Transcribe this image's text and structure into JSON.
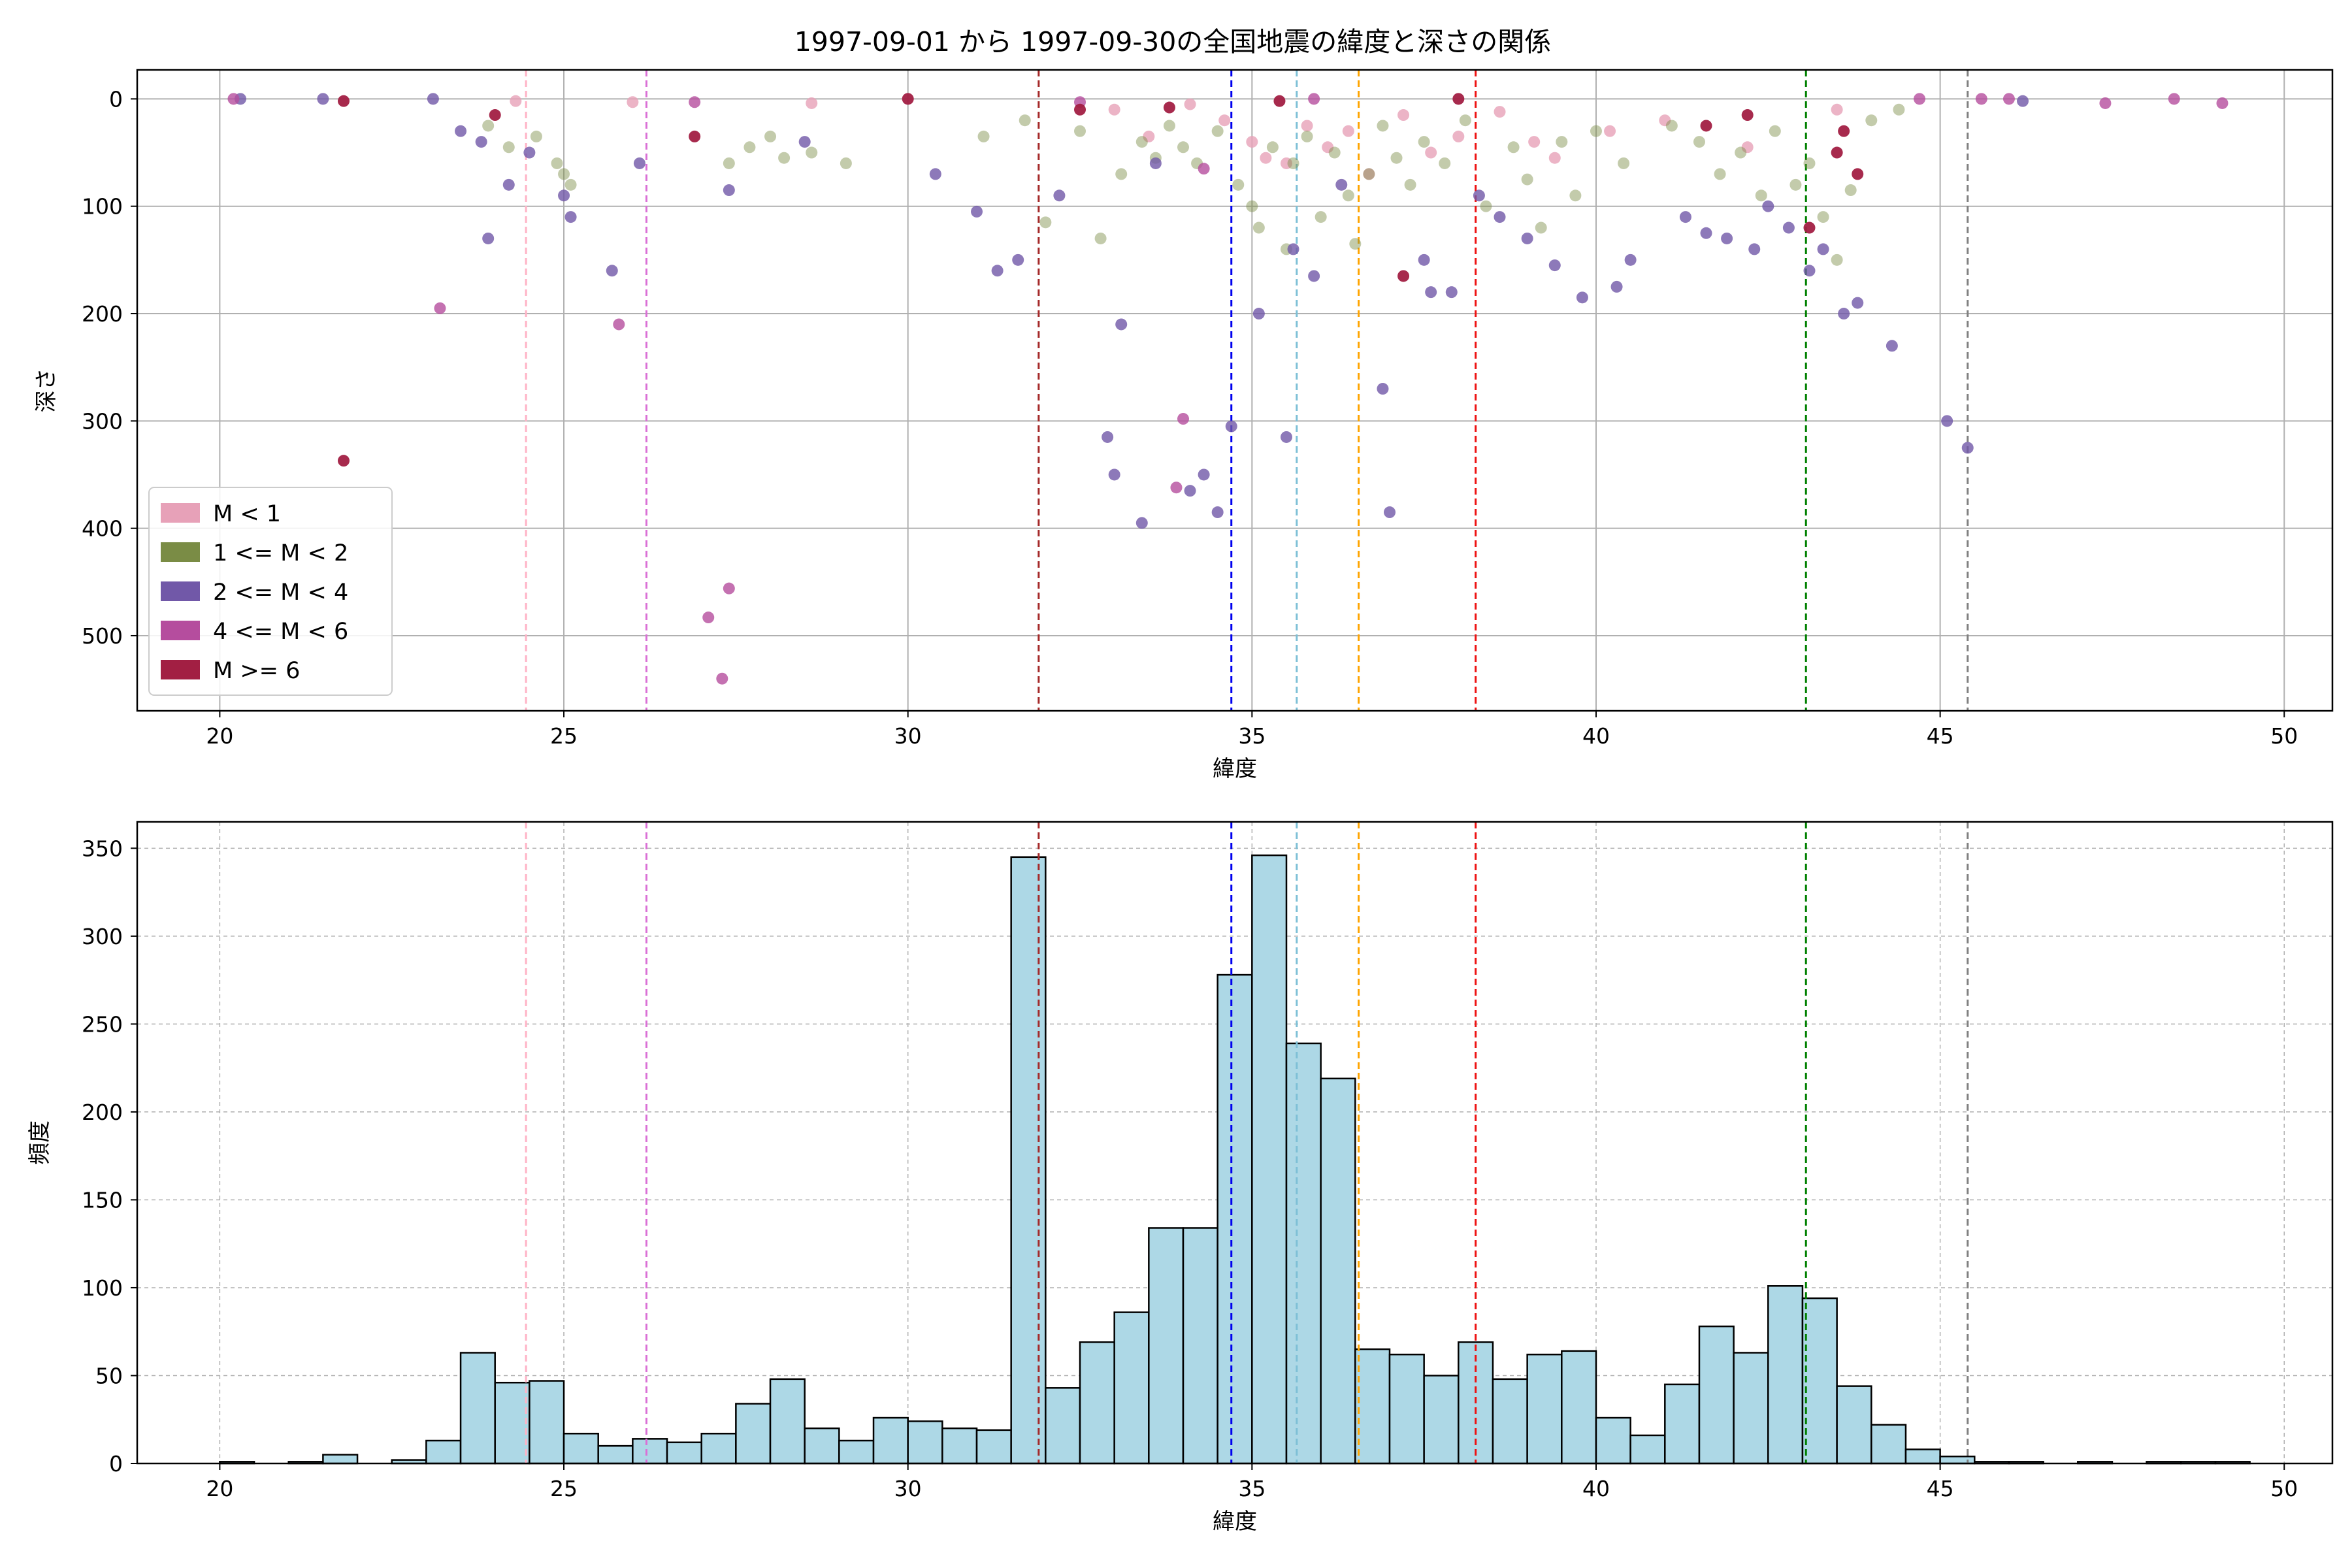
{
  "chart_data": [
    {
      "type": "scatter",
      "title": "1997-09-01 から 1997-09-30の全国地震の緯度と深さの関係",
      "xlabel": "緯度",
      "ylabel": "深さ",
      "xlim": [
        18.8,
        50.7
      ],
      "ylim": [
        570,
        -27
      ],
      "y_inverted": true,
      "xticks": [
        20,
        25,
        30,
        35,
        40,
        45,
        50
      ],
      "yticks": [
        0,
        100,
        200,
        300,
        400,
        500
      ],
      "grid": true,
      "legend_position": "lower-left",
      "legend": [
        {
          "label": "M < 1",
          "color": "#e7a1b8"
        },
        {
          "label": "1 <= M < 2",
          "color": "#7a8c45"
        },
        {
          "label": "2 <= M < 4",
          "color": "#7158a8"
        },
        {
          "label": "4 <= M < 6",
          "color": "#b54d9e"
        },
        {
          "label": "M >= 6",
          "color": "#a21f43"
        }
      ],
      "reference_lines": [
        {
          "x": 24.45,
          "color": "#ffb3c6"
        },
        {
          "x": 26.2,
          "color": "#da70d6"
        },
        {
          "x": 31.9,
          "color": "#a52a2a"
        },
        {
          "x": 34.7,
          "color": "#0000ee"
        },
        {
          "x": 35.65,
          "color": "#7ec0d6"
        },
        {
          "x": 36.55,
          "color": "#ffa500"
        },
        {
          "x": 38.25,
          "color": "#ee1111"
        },
        {
          "x": 43.05,
          "color": "#008000"
        },
        {
          "x": 45.4,
          "color": "#808080"
        }
      ],
      "series": [
        {
          "name": "M < 1",
          "color": "#e7a1b8",
          "points": [
            [
              24.3,
              2
            ],
            [
              26.0,
              3
            ],
            [
              28.6,
              4
            ],
            [
              33.0,
              10
            ],
            [
              33.5,
              35
            ],
            [
              34.1,
              5
            ],
            [
              34.6,
              20
            ],
            [
              35.0,
              40
            ],
            [
              35.2,
              55
            ],
            [
              35.5,
              60
            ],
            [
              35.8,
              25
            ],
            [
              36.1,
              45
            ],
            [
              36.4,
              30
            ],
            [
              36.7,
              70
            ],
            [
              37.2,
              15
            ],
            [
              37.6,
              50
            ],
            [
              38.0,
              35
            ],
            [
              38.6,
              12
            ],
            [
              39.1,
              40
            ],
            [
              39.4,
              55
            ],
            [
              40.2,
              30
            ],
            [
              41.0,
              20
            ],
            [
              42.2,
              45
            ],
            [
              43.5,
              10
            ]
          ]
        },
        {
          "name": "1 <= M < 2",
          "color": "#7a8c45",
          "points": [
            [
              23.9,
              25
            ],
            [
              24.2,
              45
            ],
            [
              24.6,
              35
            ],
            [
              24.9,
              60
            ],
            [
              25.0,
              70
            ],
            [
              25.1,
              80
            ],
            [
              27.4,
              60
            ],
            [
              27.7,
              45
            ],
            [
              28.0,
              35
            ],
            [
              28.2,
              55
            ],
            [
              28.6,
              50
            ],
            [
              29.1,
              60
            ],
            [
              31.1,
              35
            ],
            [
              31.7,
              20
            ],
            [
              32.0,
              115
            ],
            [
              32.5,
              30
            ],
            [
              32.8,
              130
            ],
            [
              33.1,
              70
            ],
            [
              33.4,
              40
            ],
            [
              33.6,
              55
            ],
            [
              33.8,
              25
            ],
            [
              34.0,
              45
            ],
            [
              34.2,
              60
            ],
            [
              34.5,
              30
            ],
            [
              34.8,
              80
            ],
            [
              35.0,
              100
            ],
            [
              35.1,
              120
            ],
            [
              35.3,
              45
            ],
            [
              35.5,
              140
            ],
            [
              35.6,
              60
            ],
            [
              35.8,
              35
            ],
            [
              36.0,
              110
            ],
            [
              36.2,
              50
            ],
            [
              36.4,
              90
            ],
            [
              36.5,
              135
            ],
            [
              36.7,
              70
            ],
            [
              36.9,
              25
            ],
            [
              37.1,
              55
            ],
            [
              37.3,
              80
            ],
            [
              37.5,
              40
            ],
            [
              37.8,
              60
            ],
            [
              38.1,
              20
            ],
            [
              38.4,
              100
            ],
            [
              38.8,
              45
            ],
            [
              39.0,
              75
            ],
            [
              39.2,
              120
            ],
            [
              39.5,
              40
            ],
            [
              39.7,
              90
            ],
            [
              40.0,
              30
            ],
            [
              40.4,
              60
            ],
            [
              41.1,
              25
            ],
            [
              41.5,
              40
            ],
            [
              41.8,
              70
            ],
            [
              42.1,
              50
            ],
            [
              42.4,
              90
            ],
            [
              42.6,
              30
            ],
            [
              42.9,
              80
            ],
            [
              43.1,
              60
            ],
            [
              43.3,
              110
            ],
            [
              43.5,
              150
            ],
            [
              43.7,
              85
            ],
            [
              44.0,
              20
            ],
            [
              44.4,
              10
            ]
          ]
        },
        {
          "name": "2 <= M < 4",
          "color": "#7158a8",
          "points": [
            [
              20.3,
              0
            ],
            [
              21.5,
              0
            ],
            [
              23.1,
              0
            ],
            [
              23.5,
              30
            ],
            [
              23.8,
              40
            ],
            [
              23.9,
              130
            ],
            [
              24.2,
              80
            ],
            [
              24.5,
              50
            ],
            [
              25.0,
              90
            ],
            [
              25.1,
              110
            ],
            [
              25.7,
              160
            ],
            [
              26.1,
              60
            ],
            [
              27.4,
              85
            ],
            [
              28.5,
              40
            ],
            [
              30.4,
              70
            ],
            [
              31.0,
              105
            ],
            [
              31.3,
              160
            ],
            [
              31.6,
              150
            ],
            [
              32.2,
              90
            ],
            [
              32.9,
              315
            ],
            [
              33.0,
              350
            ],
            [
              33.1,
              210
            ],
            [
              33.4,
              395
            ],
            [
              33.6,
              60
            ],
            [
              34.1,
              365
            ],
            [
              34.3,
              350
            ],
            [
              34.5,
              385
            ],
            [
              34.7,
              305
            ],
            [
              35.1,
              200
            ],
            [
              35.5,
              315
            ],
            [
              35.6,
              140
            ],
            [
              35.9,
              165
            ],
            [
              36.3,
              80
            ],
            [
              36.9,
              270
            ],
            [
              37.0,
              385
            ],
            [
              37.5,
              150
            ],
            [
              37.6,
              180
            ],
            [
              37.9,
              180
            ],
            [
              38.3,
              90
            ],
            [
              38.6,
              110
            ],
            [
              39.0,
              130
            ],
            [
              39.4,
              155
            ],
            [
              39.8,
              185
            ],
            [
              40.3,
              175
            ],
            [
              40.5,
              150
            ],
            [
              41.3,
              110
            ],
            [
              41.6,
              125
            ],
            [
              41.9,
              130
            ],
            [
              42.3,
              140
            ],
            [
              42.5,
              100
            ],
            [
              42.8,
              120
            ],
            [
              43.1,
              160
            ],
            [
              43.3,
              140
            ],
            [
              43.6,
              200
            ],
            [
              43.8,
              190
            ],
            [
              44.3,
              230
            ],
            [
              45.1,
              300
            ],
            [
              45.4,
              325
            ],
            [
              46.2,
              2
            ]
          ]
        },
        {
          "name": "4 <= M < 6",
          "color": "#b54d9e",
          "points": [
            [
              20.2,
              0
            ],
            [
              23.2,
              195
            ],
            [
              25.8,
              210
            ],
            [
              26.9,
              3
            ],
            [
              27.1,
              483
            ],
            [
              27.4,
              456
            ],
            [
              27.3,
              540
            ],
            [
              32.5,
              3
            ],
            [
              33.9,
              362
            ],
            [
              34.0,
              298
            ],
            [
              34.3,
              65
            ],
            [
              35.9,
              0
            ],
            [
              44.7,
              0
            ],
            [
              45.6,
              0
            ],
            [
              46.0,
              0
            ],
            [
              47.4,
              4
            ],
            [
              48.4,
              0
            ],
            [
              49.1,
              4
            ]
          ]
        },
        {
          "name": "M >= 6",
          "color": "#a21f43",
          "points": [
            [
              21.8,
              337
            ],
            [
              21.8,
              2
            ],
            [
              24.0,
              15
            ],
            [
              26.9,
              35
            ],
            [
              30.0,
              0
            ],
            [
              32.5,
              10
            ],
            [
              33.8,
              8
            ],
            [
              35.4,
              2
            ],
            [
              37.2,
              165
            ],
            [
              38.0,
              0
            ],
            [
              41.6,
              25
            ],
            [
              42.2,
              15
            ],
            [
              43.1,
              120
            ],
            [
              43.5,
              50
            ],
            [
              43.6,
              30
            ],
            [
              43.8,
              70
            ]
          ]
        }
      ]
    },
    {
      "type": "bar",
      "chart_kind": "histogram",
      "xlabel": "緯度",
      "ylabel": "頻度",
      "xlim": [
        18.8,
        50.7
      ],
      "ylim": [
        0,
        365
      ],
      "xticks": [
        20,
        25,
        30,
        35,
        40,
        45,
        50
      ],
      "yticks": [
        0,
        50,
        100,
        150,
        200,
        250,
        300,
        350
      ],
      "grid": true,
      "bar_color": "#add8e6",
      "bin_edges": [
        20,
        20.5,
        21,
        21.5,
        22,
        22.5,
        23,
        23.5,
        24,
        24.5,
        25,
        25.5,
        26,
        26.5,
        27,
        27.5,
        28,
        28.5,
        29,
        29.5,
        30,
        30.5,
        31,
        31.5,
        32,
        32.5,
        33,
        33.5,
        34,
        34.5,
        35,
        35.5,
        36,
        36.5,
        37,
        37.5,
        38,
        38.5,
        39,
        39.5,
        40,
        40.5,
        41,
        41.5,
        42,
        42.5,
        43,
        43.5,
        44,
        44.5,
        45,
        45.5,
        46,
        46.5,
        47,
        47.5,
        48,
        48.5,
        49,
        49.5
      ],
      "values": [
        1,
        0,
        1,
        5,
        0,
        2,
        13,
        63,
        46,
        47,
        17,
        10,
        14,
        12,
        17,
        34,
        48,
        20,
        13,
        26,
        24,
        20,
        19,
        345,
        43,
        69,
        86,
        134,
        134,
        278,
        346,
        239,
        219,
        65,
        62,
        50,
        69,
        48,
        62,
        64,
        26,
        16,
        45,
        78,
        63,
        101,
        94,
        44,
        22,
        8,
        4,
        1,
        1,
        0,
        1,
        0,
        1,
        1,
        1
      ],
      "reference_lines": [
        {
          "x": 24.45,
          "color": "#ffb3c6"
        },
        {
          "x": 26.2,
          "color": "#da70d6"
        },
        {
          "x": 31.9,
          "color": "#a52a2a"
        },
        {
          "x": 34.7,
          "color": "#0000ee"
        },
        {
          "x": 35.65,
          "color": "#7ec0d6"
        },
        {
          "x": 36.55,
          "color": "#ffa500"
        },
        {
          "x": 38.25,
          "color": "#ee1111"
        },
        {
          "x": 43.05,
          "color": "#008000"
        },
        {
          "x": 45.4,
          "color": "#808080"
        }
      ]
    }
  ]
}
